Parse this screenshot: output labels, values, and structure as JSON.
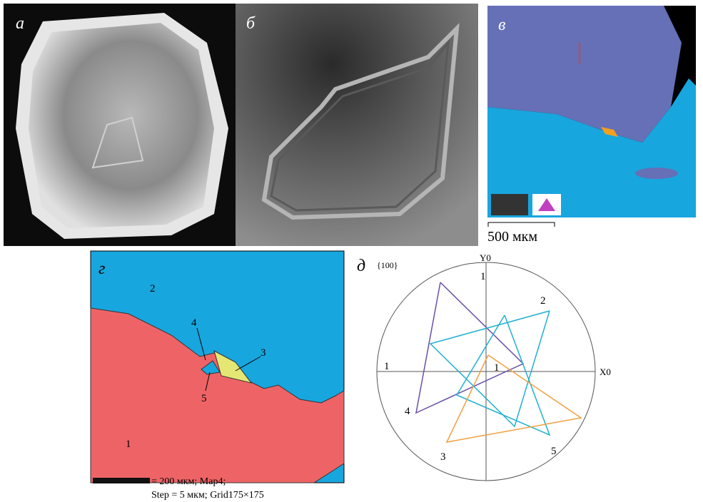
{
  "panels": [
    {
      "label": "а"
    },
    {
      "label": "б"
    },
    {
      "label": "в",
      "scale_bar": "500 мкм"
    },
    {
      "label": "г",
      "regions": [
        "1",
        "2",
        "3",
        "4",
        "5"
      ],
      "caption": [
        "= 200 мкм; Map4;",
        "Step = 5 мкм; Grid175×175"
      ]
    },
    {
      "label": "д",
      "plane": "{100}",
      "axis_y": "Y0",
      "axis_x": "X0",
      "poles": [
        "1",
        "1",
        "1",
        "2",
        "3",
        "4",
        "5"
      ]
    }
  ]
}
